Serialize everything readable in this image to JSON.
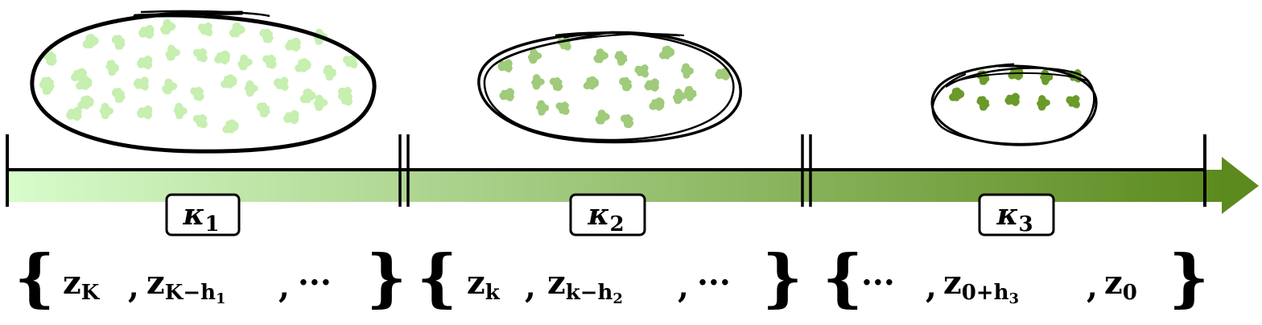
{
  "colors": {
    "arrow_start": "#d8fccb",
    "arrow_end": "#5c8a1e",
    "dots_stage1": "#c6efb0",
    "dots_stage2": "#9fcb7a",
    "dots_stage3": "#6a9a2a",
    "ink": "#000000"
  },
  "stages": [
    {
      "kappa_symbol": "κ",
      "kappa_index": "1",
      "set": {
        "open": "{",
        "items": [
          {
            "base": "z",
            "sub": "K"
          },
          {
            "base": "z",
            "sub": "K−h",
            "subsub": "1"
          },
          {
            "base": "···"
          }
        ],
        "close": "}"
      }
    },
    {
      "kappa_symbol": "κ",
      "kappa_index": "2",
      "set": {
        "open": "{",
        "items": [
          {
            "base": "z",
            "sub": "k"
          },
          {
            "base": "z",
            "sub": "k−h",
            "subsub": "2"
          },
          {
            "base": "···"
          }
        ],
        "close": "}"
      }
    },
    {
      "kappa_symbol": "κ",
      "kappa_index": "3",
      "set": {
        "open": "{",
        "items": [
          {
            "base": "···"
          },
          {
            "base": "z",
            "sub": "0+h",
            "subsub": "3"
          },
          {
            "base": "z",
            "sub": "0"
          }
        ],
        "close": "}"
      }
    }
  ]
}
